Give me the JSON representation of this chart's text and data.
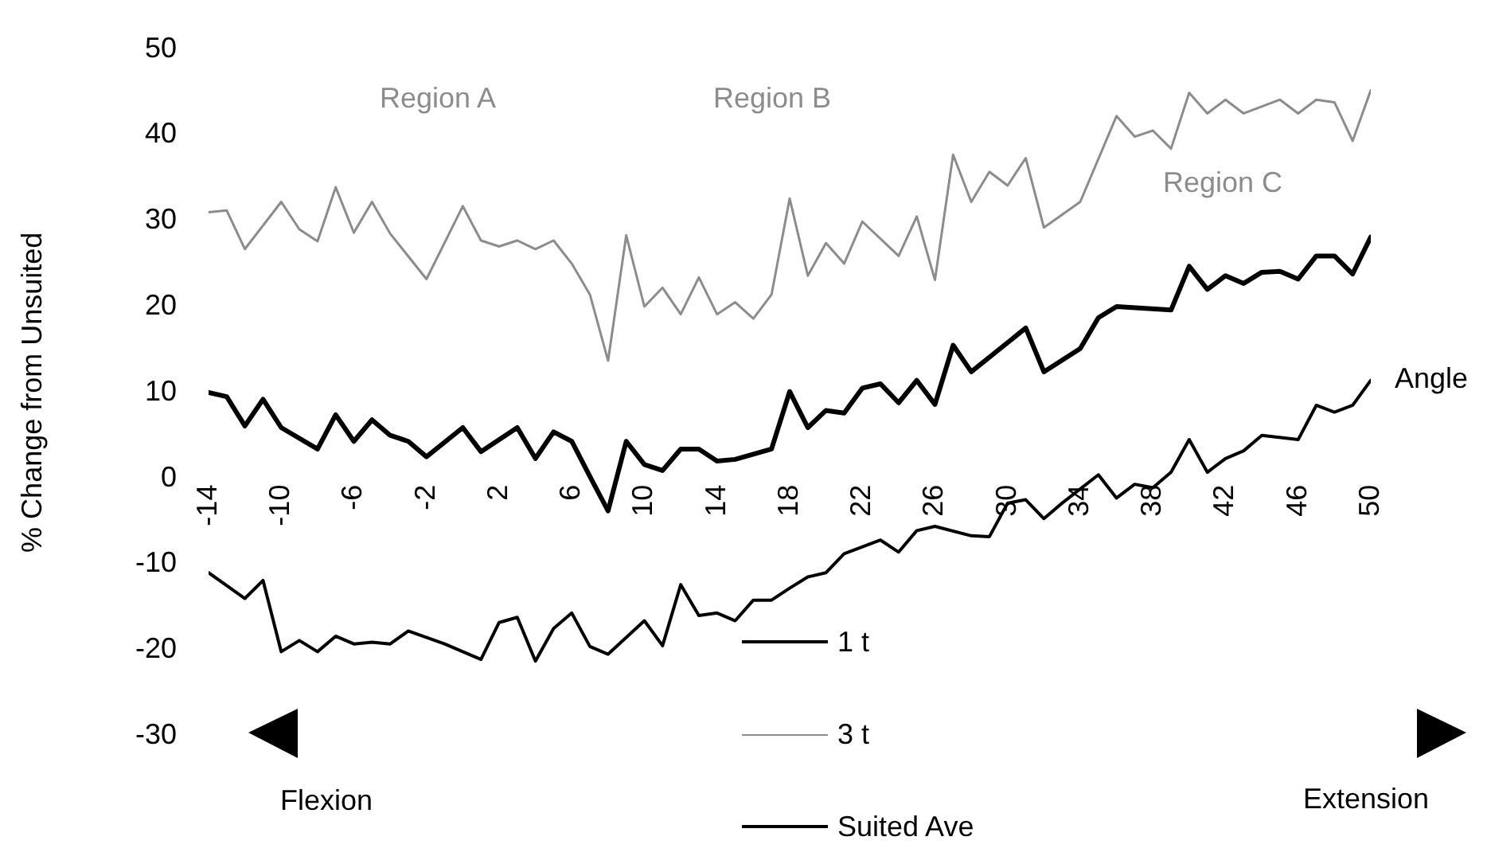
{
  "chart_data": {
    "type": "line",
    "ylabel": "% Change from Unsuited",
    "xlabel": "Angle",
    "xlim": [
      -14,
      50
    ],
    "xticks": [
      -14,
      -10,
      -6,
      -2,
      2,
      6,
      10,
      14,
      18,
      22,
      26,
      30,
      34,
      38,
      42,
      46,
      50
    ],
    "ylim": [
      -30,
      50
    ],
    "yticks": [
      -30,
      -20,
      -10,
      0,
      10,
      20,
      30,
      40,
      50
    ],
    "grid": false,
    "legend": "bottom",
    "marker": "none",
    "line_style": "solid",
    "annotations": [
      "Region A",
      "Region B",
      "Region C",
      "Flexion",
      "Extension"
    ],
    "series": [
      {
        "name": "1 t",
        "color": "#000000",
        "x": [
          -14,
          -13,
          -12,
          -11,
          -10,
          -9,
          -8,
          -7,
          -6,
          -5,
          -4,
          -3,
          -1,
          1,
          2,
          3,
          4,
          5,
          6,
          7,
          8,
          10,
          11,
          12,
          13,
          14,
          15,
          16,
          17,
          18,
          19,
          20,
          21,
          23,
          24,
          25,
          26,
          28,
          29,
          30,
          31,
          32,
          33,
          35,
          36,
          37,
          38,
          39,
          40,
          41,
          42,
          43,
          44,
          46,
          47,
          48,
          49,
          50
        ],
        "values": [
          -11,
          -12.5,
          -14,
          -11.9,
          -20.2,
          -18.9,
          -20.2,
          -18.4,
          -19.3,
          -19.1,
          -19.3,
          -17.8,
          -19.3,
          -21.1,
          -16.8,
          -16.2,
          -21.3,
          -17.5,
          -15.7,
          -19.6,
          -20.5,
          -16.6,
          -19.5,
          -12.4,
          -16,
          -15.7,
          -16.6,
          -14.2,
          -14.2,
          -12.8,
          -11.5,
          -11,
          -8.8,
          -7.2,
          -8.6,
          -6.1,
          -5.6,
          -6.7,
          -6.8,
          -2.9,
          -2.5,
          -4.7,
          -2.9,
          0.4,
          -2.3,
          -0.7,
          -1.1,
          0.7,
          4.5,
          0.7,
          2.3,
          3.2,
          5,
          4.5,
          8.5,
          7.7,
          8.5,
          11.4
        ]
      },
      {
        "name": "3 t",
        "color": "#8c8c8c",
        "x": [
          -14,
          -13,
          -12,
          -10,
          -9,
          -8,
          -7,
          -6,
          -5,
          -4,
          -2,
          0,
          1,
          2,
          3,
          4,
          5,
          6,
          7,
          8,
          9,
          10,
          11,
          12,
          13,
          14,
          15,
          16,
          17,
          18,
          19,
          20,
          21,
          22,
          24,
          25,
          26,
          27,
          28,
          29,
          30,
          31,
          32,
          34,
          36,
          37,
          38,
          39,
          40,
          41,
          42,
          43,
          45,
          46,
          47,
          48,
          49,
          50
        ],
        "values": [
          31,
          31.2,
          26.7,
          32.2,
          29,
          27.6,
          33.9,
          28.6,
          32.2,
          28.5,
          23.2,
          31.7,
          27.7,
          27,
          27.7,
          26.7,
          27.7,
          25,
          21.4,
          13.7,
          28.3,
          20,
          22.2,
          19.1,
          23.4,
          19.1,
          20.5,
          18.6,
          21.4,
          32.6,
          23.6,
          27.4,
          25,
          29.9,
          25.9,
          30.5,
          23.1,
          37.7,
          32.2,
          35.7,
          34.1,
          37.3,
          29.2,
          32.2,
          42.2,
          39.8,
          40.5,
          38.4,
          44.9,
          42.5,
          44.1,
          42.5,
          44.1,
          42.5,
          44.1,
          43.8,
          39.3,
          45.2
        ]
      },
      {
        "name": "Suited Ave",
        "color": "#000000",
        "x": [
          -14,
          -13,
          -12,
          -11,
          -10,
          -8,
          -7,
          -6,
          -5,
          -4,
          -3,
          -2,
          0,
          1,
          3,
          4,
          5,
          6,
          7,
          8,
          9,
          10,
          11,
          12,
          13,
          14,
          15,
          17,
          18,
          19,
          20,
          21,
          22,
          23,
          24,
          25,
          26,
          27,
          28,
          31,
          32,
          34,
          35,
          36,
          39,
          40,
          41,
          42,
          43,
          44,
          45,
          46,
          47,
          48,
          49,
          50
        ],
        "values": [
          10,
          9.5,
          6.1,
          9.2,
          5.9,
          3.4,
          7.4,
          4.3,
          6.8,
          5,
          4.3,
          2.5,
          5.9,
          3.1,
          5.9,
          2.3,
          5.4,
          4.3,
          0.2,
          -3.8,
          4.3,
          1.6,
          0.9,
          3.4,
          3.4,
          2,
          2.2,
          3.4,
          10.1,
          5.9,
          7.9,
          7.6,
          10.5,
          11,
          8.8,
          11.4,
          8.6,
          15.5,
          12.4,
          17.5,
          12.4,
          15.1,
          18.7,
          20,
          19.6,
          24.7,
          22,
          23.6,
          22.7,
          24,
          24.1,
          23.2,
          25.9,
          25.9,
          23.8,
          28.1
        ]
      }
    ]
  }
}
